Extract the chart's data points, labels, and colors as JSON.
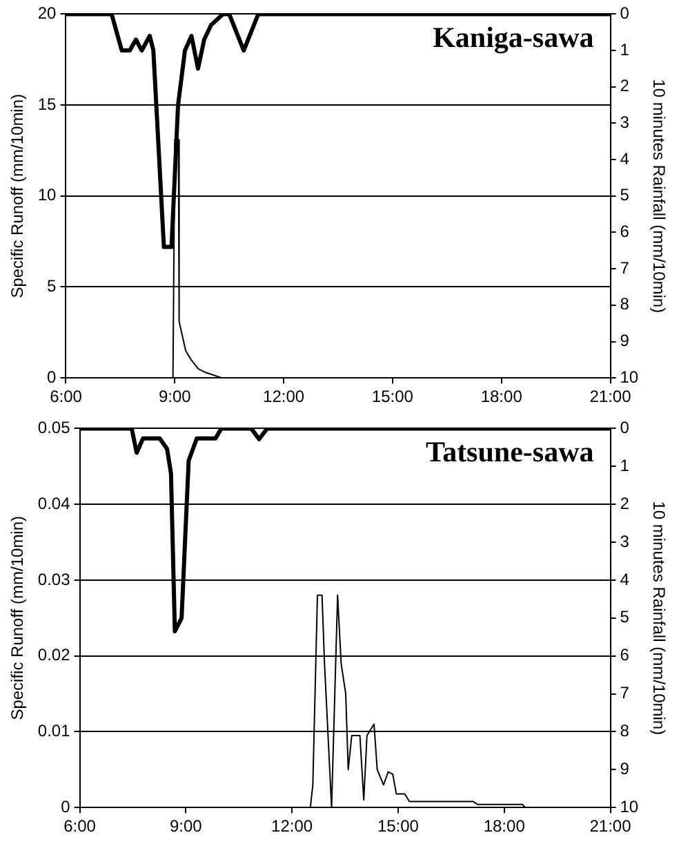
{
  "chart_data": [
    {
      "type": "line",
      "title": "Kaniga-sawa",
      "ylabel": "Specific Runoff (mm/10min)",
      "y2label": "10 minutes Rainfall (mm/10min)",
      "xlim": [
        6,
        21
      ],
      "xticks": [
        {
          "value": 6,
          "label": "6:00"
        },
        {
          "value": 9,
          "label": "9:00"
        },
        {
          "value": 12,
          "label": "12:00"
        },
        {
          "value": 15,
          "label": "15:00"
        },
        {
          "value": 18,
          "label": "18:00"
        },
        {
          "value": 21,
          "label": "21:00"
        }
      ],
      "ylim": [
        0,
        20
      ],
      "yticks": [
        0,
        5,
        10,
        15,
        20
      ],
      "y2lim": [
        10,
        0
      ],
      "y2ticks": [
        0,
        1,
        2,
        3,
        4,
        5,
        6,
        7,
        8,
        9,
        10
      ],
      "grid": "y",
      "series": [
        {
          "color": "#000000",
          "x": [
            6,
            8.95,
            9.0,
            9.1,
            9.12,
            9.3,
            9.45,
            9.65,
            9.85,
            10.3,
            21
          ],
          "values": [
            0,
            0,
            13.1,
            13.1,
            3.1,
            1.5,
            1.0,
            0.5,
            0.3,
            0,
            0
          ]
        },
        {
          "color": "#000000",
          "axis": "y2",
          "x": [
            6,
            7.26,
            7.54,
            7.76,
            7.93,
            8.09,
            8.31,
            8.41,
            8.7,
            8.91,
            9.09,
            9.28,
            9.46,
            9.64,
            9.81,
            10.0,
            10.33,
            10.5,
            10.9,
            11.3,
            21
          ],
          "values": [
            0,
            0,
            1.0,
            1.0,
            0.7,
            1.0,
            0.6,
            1.0,
            6.4,
            6.4,
            2.5,
            1.0,
            0.6,
            1.5,
            0.7,
            0.3,
            0,
            0,
            1.0,
            0,
            0
          ]
        }
      ]
    },
    {
      "type": "line",
      "title": "Tatsune-sawa",
      "ylabel": "Specific Runoff (mm/10min)",
      "y2label": "10 minutes Rainfall (mm/10min)",
      "xlim": [
        6,
        21
      ],
      "xticks": [
        {
          "value": 6,
          "label": "6:00"
        },
        {
          "value": 9,
          "label": "9:00"
        },
        {
          "value": 12,
          "label": "12:00"
        },
        {
          "value": 15,
          "label": "15:00"
        },
        {
          "value": 18,
          "label": "18:00"
        },
        {
          "value": 21,
          "label": "21:00"
        }
      ],
      "ylim": [
        0,
        0.05
      ],
      "yticks": [
        0,
        0.01,
        0.02,
        0.03,
        0.04,
        0.05
      ],
      "y2lim": [
        10,
        0
      ],
      "y2ticks": [
        0,
        1,
        2,
        3,
        4,
        5,
        6,
        7,
        8,
        9,
        10
      ],
      "grid": "y",
      "series": [
        {
          "color": "#000000",
          "x": [
            6,
            12.52,
            12.59,
            12.72,
            12.85,
            12.92,
            13.12,
            13.29,
            13.39,
            13.52,
            13.59,
            13.69,
            13.92,
            14.03,
            14.12,
            14.32,
            14.41,
            14.59,
            14.72,
            14.85,
            14.95,
            15.19,
            15.32,
            17.12,
            17.25,
            18.52,
            18.59,
            21
          ],
          "values": [
            0,
            0,
            0.003,
            0.028,
            0.028,
            0.019,
            0,
            0.028,
            0.019,
            0.015,
            0.005,
            0.0095,
            0.0095,
            0.001,
            0.0095,
            0.011,
            0.005,
            0.003,
            0.0047,
            0.0044,
            0.0018,
            0.0018,
            0.0008,
            0.0008,
            0.0004,
            0.0004,
            0,
            0
          ]
        },
        {
          "color": "#000000",
          "axis": "y2",
          "x": [
            6,
            7.47,
            7.61,
            7.79,
            8.26,
            8.47,
            8.58,
            8.69,
            8.88,
            9.08,
            9.31,
            9.84,
            10.0,
            10.85,
            11.07,
            11.3,
            21
          ],
          "values": [
            0,
            0,
            0.64,
            0.26,
            0.26,
            0.54,
            1.18,
            5.35,
            5.0,
            0.85,
            0.26,
            0.26,
            0,
            0,
            0.28,
            0,
            0
          ]
        }
      ]
    }
  ]
}
